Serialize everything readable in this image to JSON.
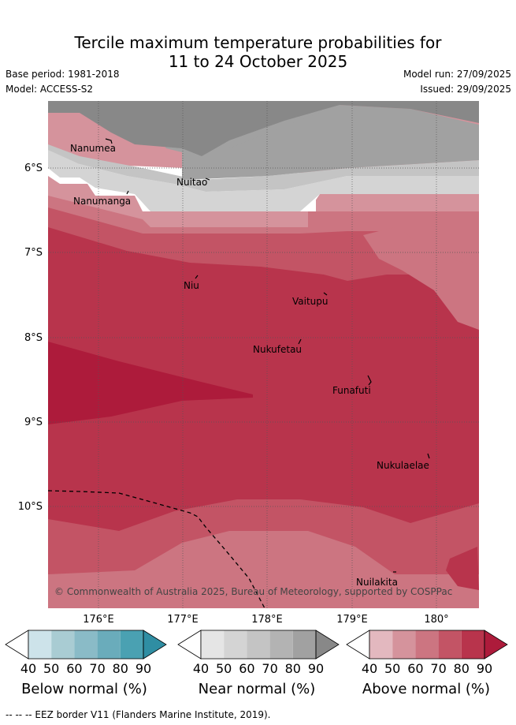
{
  "title_line1": "Tercile maximum temperature probabilities for",
  "title_line2": "11 to 24 October 2025",
  "base_period": "Base period: 1981-2018",
  "model": "Model: ACCESS-S2",
  "model_run": "Model run: 27/09/2025",
  "issued": "Issued: 29/09/2025",
  "copyright": "© Commonwealth of Australia 2025, Bureau of Meteorology, supported by COSPPac",
  "lat_labels": [
    "6°S",
    "7°S",
    "8°S",
    "9°S",
    "10°S"
  ],
  "lon_labels": [
    "176°E",
    "177°E",
    "178°E",
    "179°E",
    "180°"
  ],
  "islands": [
    "Nanumea",
    "Nuitao",
    "Nanumanga",
    "Niu",
    "Vaitupu",
    "Nukufetau",
    "Funafuti",
    "Nukulaelae",
    "Nuilakita"
  ],
  "colorbars": [
    {
      "title": "Below normal (%)",
      "ticks": [
        "40",
        "50",
        "60",
        "70",
        "80",
        "90"
      ],
      "colors": [
        "#cde3ea",
        "#a9ccd3",
        "#8abbc7",
        "#6aacbb",
        "#4aa1b2",
        "#2f8ea3"
      ]
    },
    {
      "title": "Near normal (%)",
      "ticks": [
        "40",
        "50",
        "60",
        "70",
        "80",
        "90"
      ],
      "colors": [
        "#e5e5e5",
        "#d4d4d4",
        "#c4c4c4",
        "#b3b3b3",
        "#a1a1a1",
        "#888888"
      ]
    },
    {
      "title": "Above normal (%)",
      "ticks": [
        "40",
        "50",
        "60",
        "70",
        "80",
        "90"
      ],
      "colors": [
        "#e3b8bf",
        "#d5939c",
        "#cc7581",
        "#c35465",
        "#b8344c",
        "#ad1b3b"
      ]
    }
  ],
  "footer": "--  --  -- EEZ border V11 (Flanders Marine Institute, 2019)."
}
